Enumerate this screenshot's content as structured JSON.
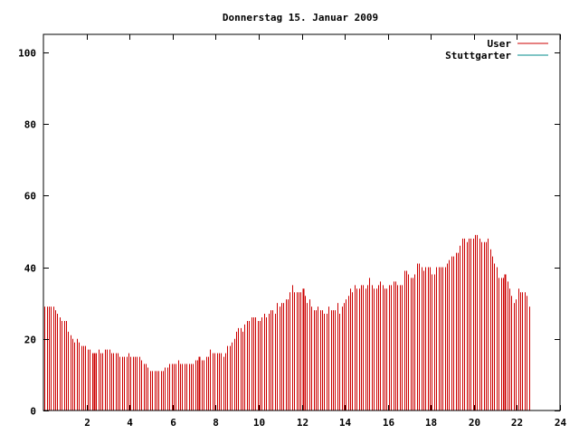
{
  "chart_data": {
    "type": "bar",
    "title": "Donnerstag 15. Januar 2009",
    "xlabel": "",
    "ylabel": "",
    "xlim": [
      0,
      24
    ],
    "ylim": [
      0,
      105
    ],
    "x_ticks": [
      2,
      4,
      6,
      8,
      10,
      12,
      14,
      16,
      18,
      20,
      22,
      24
    ],
    "y_ticks": [
      0,
      20,
      40,
      60,
      80,
      100
    ],
    "grid": false,
    "legend_position": "top-right",
    "series": [
      {
        "name": "User",
        "color": "#cc0000",
        "interval_hours": 0.1,
        "values": [
          29,
          29,
          29,
          29,
          29,
          28,
          27,
          26,
          25,
          25,
          25,
          22,
          21,
          20,
          19,
          20,
          19,
          18,
          18,
          18,
          17,
          17,
          16,
          16,
          16,
          17,
          16,
          16,
          17,
          17,
          17,
          16,
          16,
          16,
          16,
          15,
          15,
          15,
          15,
          16,
          15,
          15,
          15,
          15,
          15,
          14,
          13,
          13,
          12,
          11,
          11,
          11,
          11,
          11,
          11,
          11,
          12,
          12,
          13,
          13,
          13,
          13,
          14,
          13,
          13,
          13,
          13,
          13,
          13,
          13,
          14,
          14,
          15,
          14,
          14,
          15,
          15,
          17,
          16,
          16,
          16,
          16,
          16,
          15,
          16,
          18,
          18,
          19,
          20,
          22,
          23,
          23,
          22,
          24,
          25,
          25,
          26,
          26,
          26,
          25,
          25,
          26,
          27,
          26,
          27,
          28,
          28,
          27,
          30,
          29,
          30,
          30,
          31,
          31,
          33,
          35,
          33,
          33,
          33,
          33,
          34,
          32,
          30,
          31,
          29,
          28,
          28,
          29,
          28,
          28,
          27,
          27,
          29,
          28,
          28,
          28,
          30,
          27,
          29,
          30,
          31,
          32,
          34,
          33,
          35,
          34,
          34,
          35,
          35,
          34,
          35,
          37,
          35,
          34,
          34,
          35,
          36,
          35,
          34,
          34,
          35,
          35,
          36,
          36,
          35,
          35,
          35,
          39,
          39,
          38,
          37,
          37,
          38,
          41,
          41,
          40,
          39,
          40,
          40,
          40,
          38,
          38,
          40,
          40,
          40,
          40,
          40,
          41,
          42,
          43,
          43,
          44,
          44,
          46,
          48,
          48,
          47,
          48,
          48,
          48,
          49,
          49,
          48,
          47,
          47,
          47,
          48,
          45,
          43,
          41,
          40,
          37,
          37,
          37,
          38,
          36,
          34,
          32,
          30,
          31,
          34,
          33,
          33,
          33,
          32,
          29
        ],
        "highlight_indices": [
          23,
          72,
          120,
          214
        ]
      },
      {
        "name": "Stuttgarter",
        "color": "#008b8b",
        "values": []
      }
    ]
  }
}
